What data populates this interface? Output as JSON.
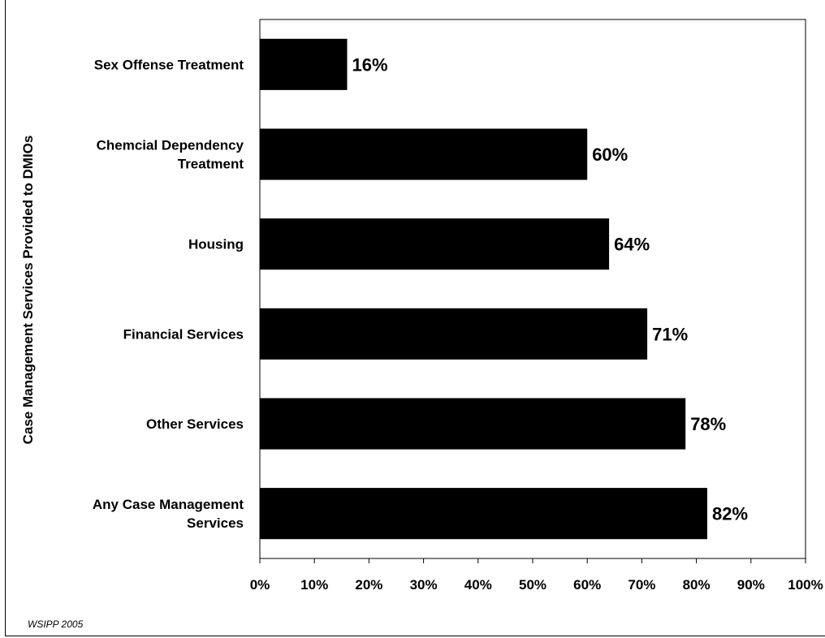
{
  "chart_data": {
    "type": "bar",
    "orientation": "horizontal",
    "categories": [
      "Sex Offense Treatment",
      "Chemcial Dependency Treatment",
      "Housing",
      "Financial Services",
      "Other Services",
      "Any Case Management Services"
    ],
    "category_lines": [
      [
        "Sex Offense Treatment"
      ],
      [
        "Chemcial Dependency",
        "Treatment"
      ],
      [
        "Housing"
      ],
      [
        "Financial Services"
      ],
      [
        "Other Services"
      ],
      [
        "Any Case Management",
        "Services"
      ]
    ],
    "values": [
      16,
      60,
      64,
      71,
      78,
      82
    ],
    "data_labels": [
      "16%",
      "60%",
      "64%",
      "71%",
      "78%",
      "82%"
    ],
    "ylabel": "Case Management Services Provided to DMIOs",
    "xlim": [
      0,
      100
    ],
    "xticks": [
      0,
      10,
      20,
      30,
      40,
      50,
      60,
      70,
      80,
      90,
      100
    ],
    "xtick_labels": [
      "0%",
      "10%",
      "20%",
      "30%",
      "40%",
      "50%",
      "60%",
      "70%",
      "80%",
      "90%",
      "100%"
    ],
    "bar_color": "#000000",
    "grid": false
  },
  "footnote": "WSIPP 2005"
}
